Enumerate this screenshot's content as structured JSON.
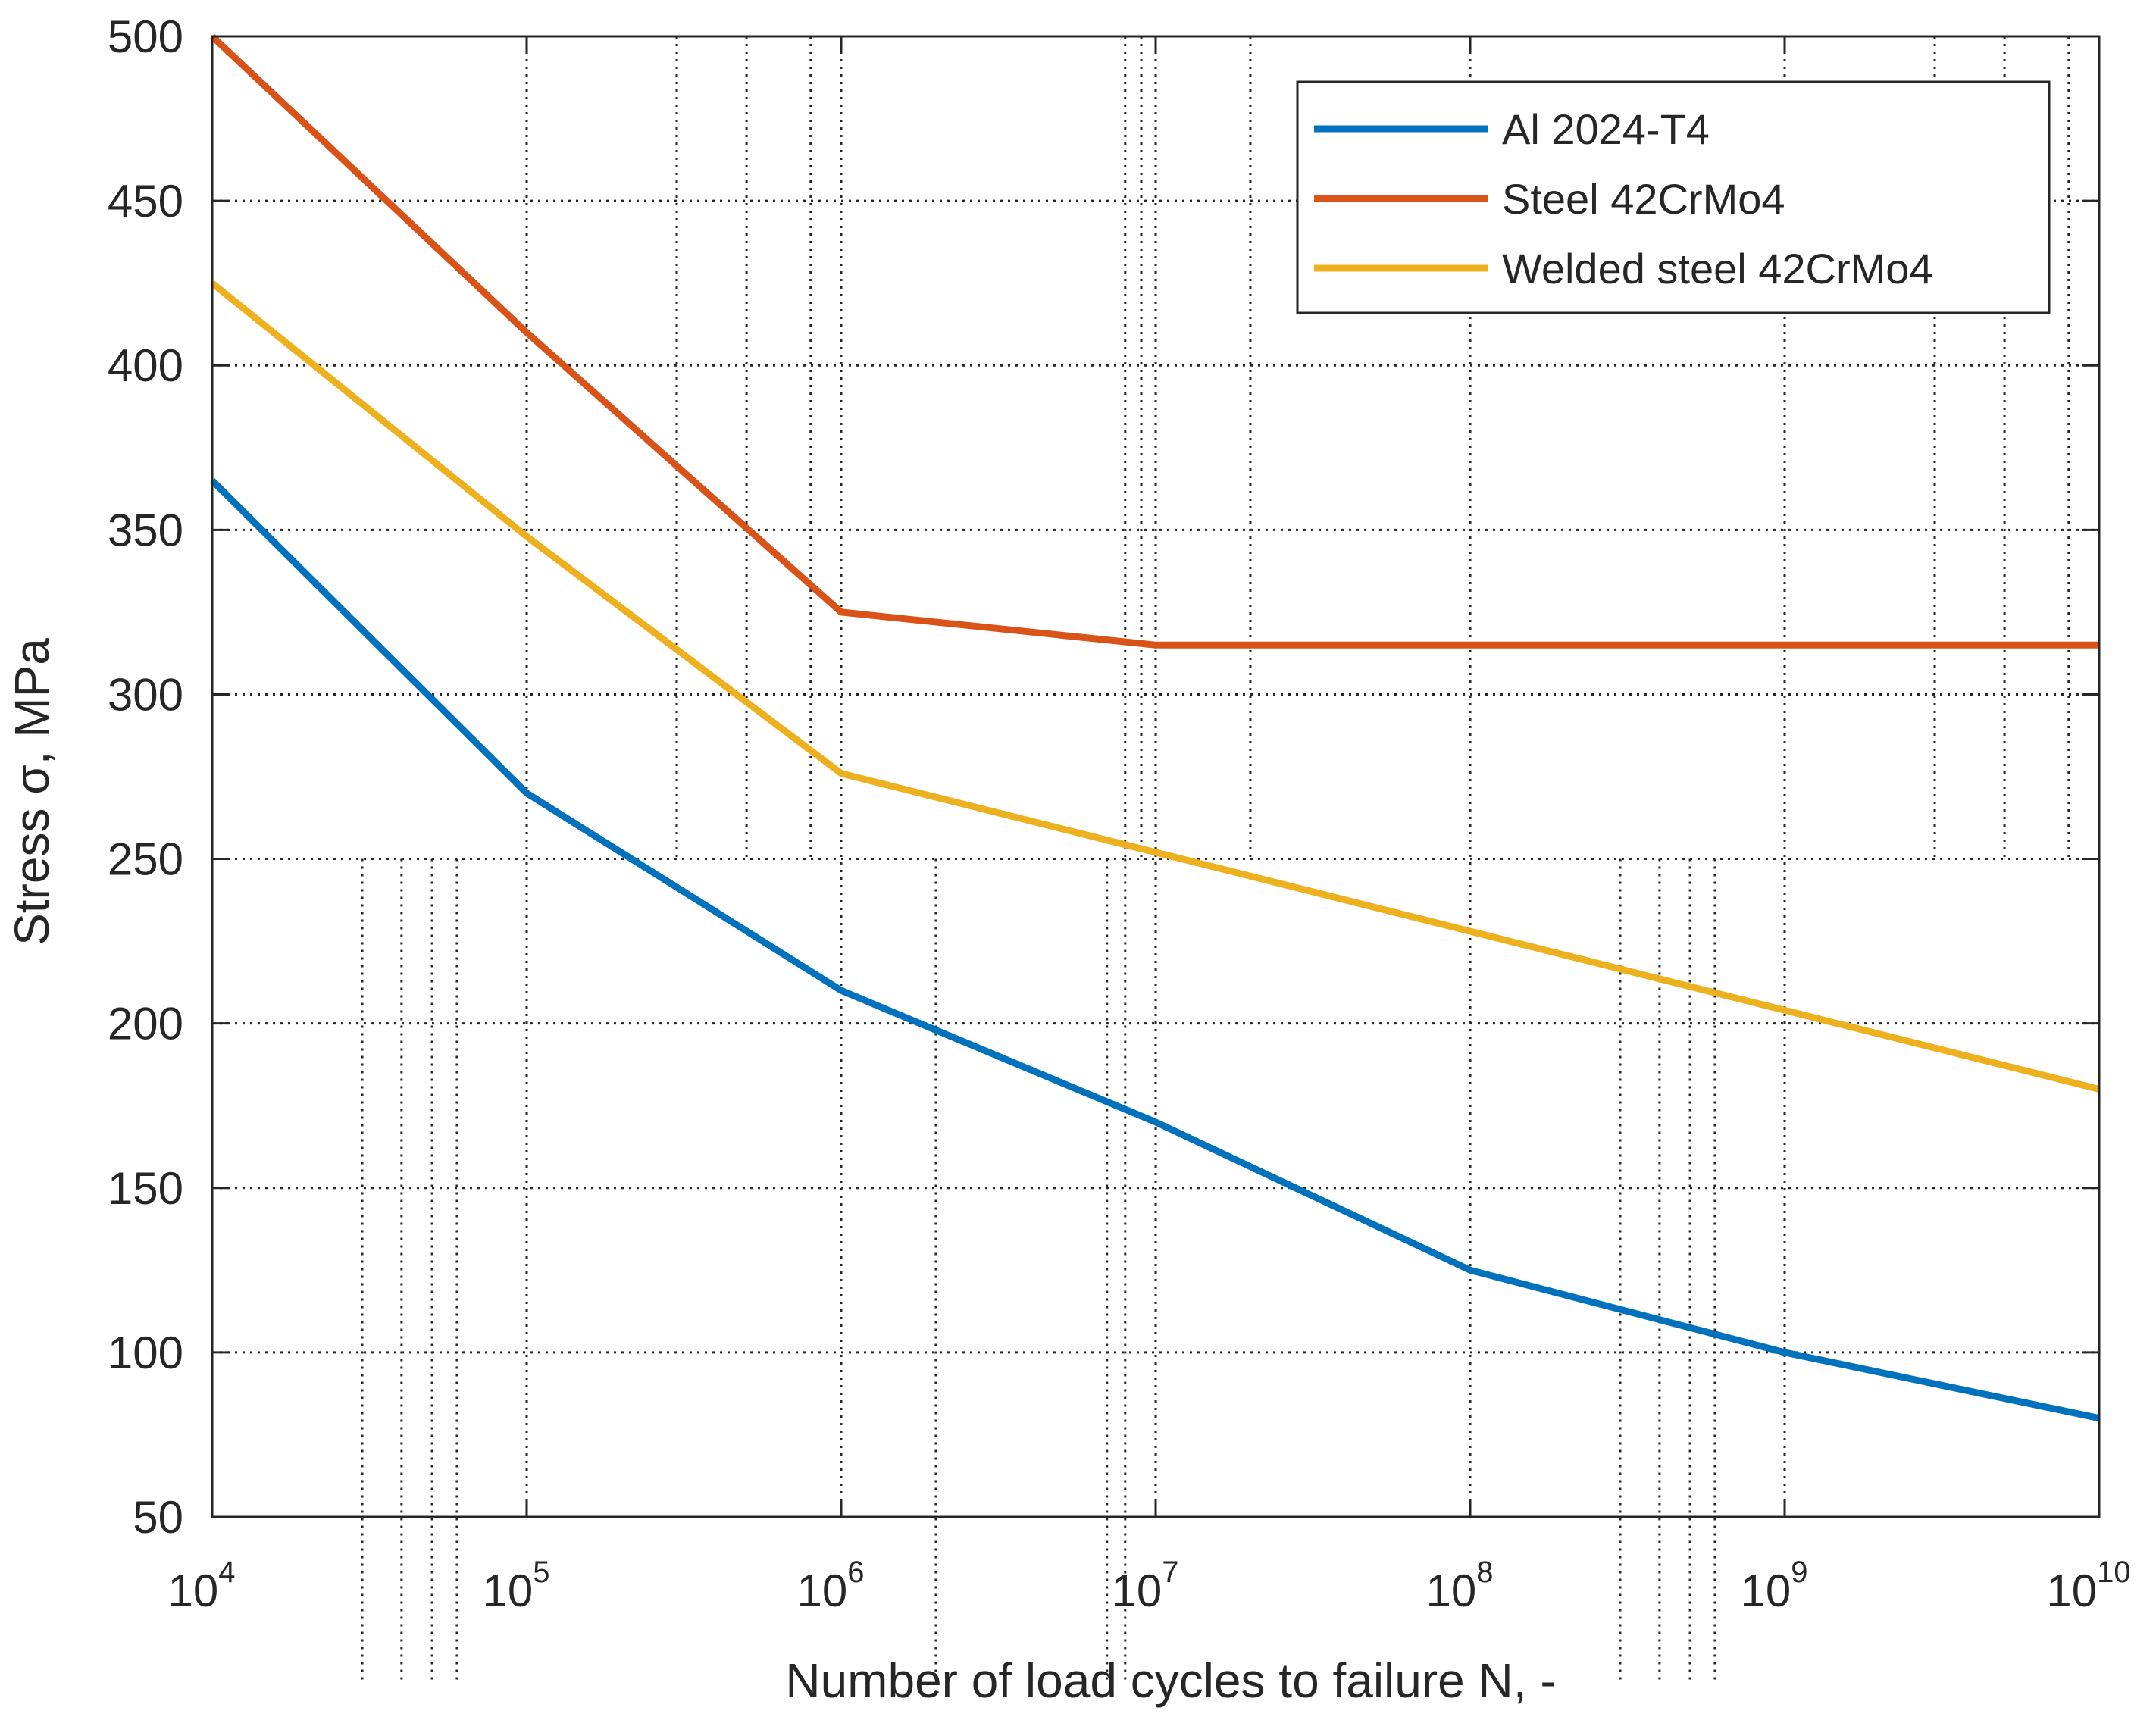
{
  "chart_data": {
    "type": "line",
    "title": "",
    "xlabel": "Number of load cycles to failure N, -",
    "ylabel": "Stress σ, MPa",
    "xscale": "log",
    "xlim": [
      10000,
      10000000000
    ],
    "ylim": [
      50,
      500
    ],
    "xticks": [
      {
        "value": 10000,
        "base": "10",
        "exp": "4"
      },
      {
        "value": 100000,
        "base": "10",
        "exp": "5"
      },
      {
        "value": 1000000,
        "base": "10",
        "exp": "6"
      },
      {
        "value": 10000000,
        "base": "10",
        "exp": "7"
      },
      {
        "value": 100000000,
        "base": "10",
        "exp": "8"
      },
      {
        "value": 1000000000,
        "base": "10",
        "exp": "9"
      },
      {
        "value": 10000000000,
        "base": "10",
        "exp": "10"
      }
    ],
    "yticks": [
      {
        "value": 50,
        "label": "50"
      },
      {
        "value": 100,
        "label": "100"
      },
      {
        "value": 150,
        "label": "150"
      },
      {
        "value": 200,
        "label": "200"
      },
      {
        "value": 250,
        "label": "250"
      },
      {
        "value": 300,
        "label": "300"
      },
      {
        "value": 350,
        "label": "350"
      },
      {
        "value": 400,
        "label": "400"
      },
      {
        "value": 450,
        "label": "450"
      },
      {
        "value": 500,
        "label": "500"
      }
    ],
    "grid": true,
    "legend_position": "top-right",
    "series": [
      {
        "name": "Al 2024-T4",
        "color": "#0072BD",
        "x": [
          10000,
          100000,
          1000000,
          10000000,
          100000000,
          1000000000,
          10000000000
        ],
        "y": [
          365,
          270,
          210,
          170,
          125,
          100,
          80
        ]
      },
      {
        "name": "Steel 42CrMo4",
        "color": "#D95319",
        "x": [
          10000,
          100000,
          1000000,
          10000000,
          10000000000
        ],
        "y": [
          500,
          410,
          325,
          315,
          315
        ]
      },
      {
        "name": "Welded steel 42CrMo4",
        "color": "#EDB120",
        "x": [
          10000,
          100000,
          1000000,
          10000000,
          100000000,
          1000000000,
          10000000000
        ],
        "y": [
          425,
          348,
          276,
          252,
          228,
          204,
          180
        ]
      }
    ]
  }
}
